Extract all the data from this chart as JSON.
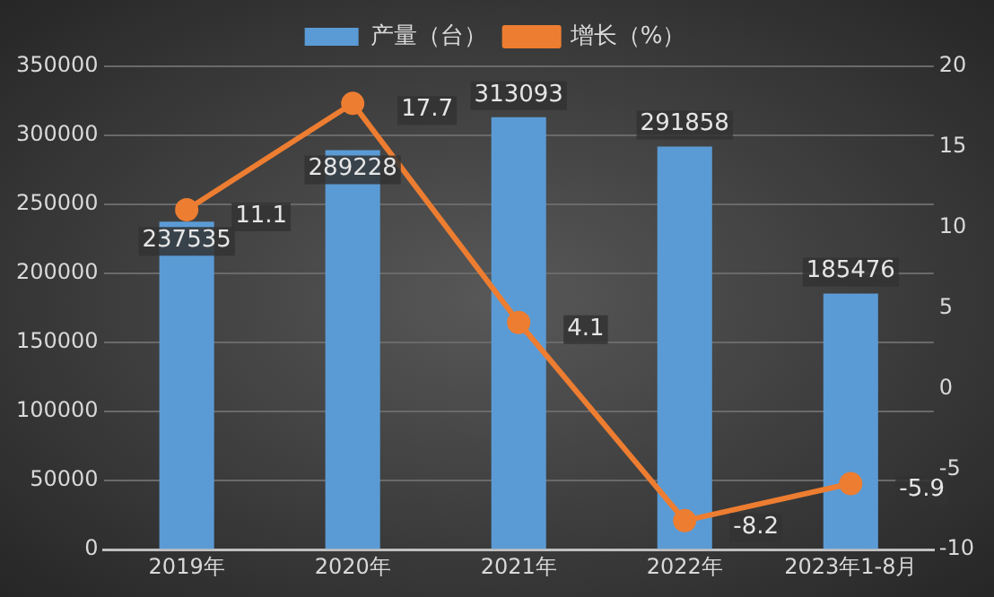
{
  "chart_data": {
    "type": "bar",
    "categories": [
      "2019年",
      "2020年",
      "2021年",
      "2022年",
      "2023年1-8月"
    ],
    "series": [
      {
        "name": "产量（台）",
        "color": "#5b9bd5",
        "values": [
          237535,
          289228,
          313093,
          291858,
          185476
        ]
      },
      {
        "name": "增长（%）",
        "type": "line",
        "axis": "y2",
        "color": "#ed7d31",
        "values": [
          11.1,
          17.7,
          4.1,
          -8.2,
          -5.9
        ]
      }
    ],
    "ylim": [
      0,
      350000
    ],
    "yticks": [
      0,
      50000,
      100000,
      150000,
      200000,
      250000,
      300000,
      350000
    ],
    "y2lim": [
      -10,
      20
    ],
    "y2ticks": [
      -10,
      -5,
      0,
      5,
      10,
      15,
      20
    ],
    "grid": "y",
    "legend": "top",
    "marker": "circle",
    "data_labels": true
  }
}
